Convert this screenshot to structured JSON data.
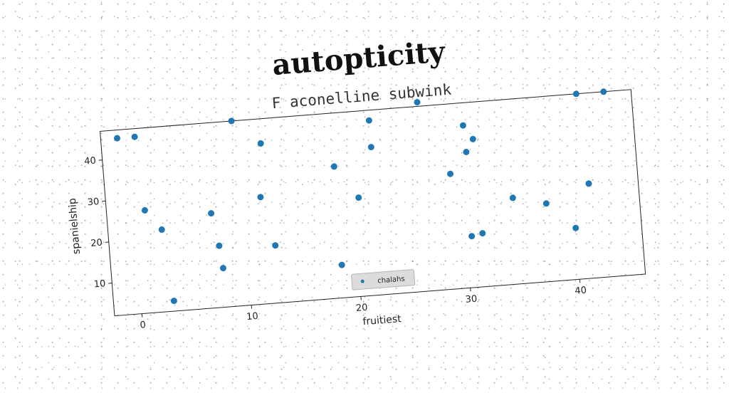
{
  "chart_data": {
    "type": "scatter",
    "title": "autopticity",
    "subtitle": "F aconelline subwink",
    "xlabel": "fruitiest",
    "ylabel": "spanielship",
    "xlim": [
      -2.5,
      46
    ],
    "ylim": [
      2,
      47
    ],
    "xticks": [
      0,
      10,
      20,
      30,
      40
    ],
    "yticks": [
      10,
      20,
      30,
      40
    ],
    "grid": false,
    "legend_position": "bottom-center",
    "series": [
      {
        "name": "chalahs",
        "color": "#1f77b4",
        "points": [
          [
            -1,
            45
          ],
          [
            0.6,
            45
          ],
          [
            1.0,
            27
          ],
          [
            2.4,
            22
          ],
          [
            3.0,
            4.5
          ],
          [
            7.0,
            25
          ],
          [
            7.5,
            17
          ],
          [
            7.7,
            11.5
          ],
          [
            9.5,
            47
          ],
          [
            12.0,
            41
          ],
          [
            11.6,
            28
          ],
          [
            12.6,
            16
          ],
          [
            18.5,
            34
          ],
          [
            18.5,
            10
          ],
          [
            20.5,
            26
          ],
          [
            22.0,
            44.5
          ],
          [
            22.0,
            38
          ],
          [
            26.5,
            48
          ],
          [
            29.0,
            30
          ],
          [
            30.5,
            41.5
          ],
          [
            30.6,
            35
          ],
          [
            31.3,
            38
          ],
          [
            30.5,
            14.5
          ],
          [
            31.5,
            15
          ],
          [
            34.5,
            23
          ],
          [
            37.5,
            21
          ],
          [
            40,
            14.5
          ],
          [
            41.0,
            47
          ],
          [
            41.5,
            25
          ],
          [
            43.5,
            47
          ]
        ]
      }
    ]
  }
}
